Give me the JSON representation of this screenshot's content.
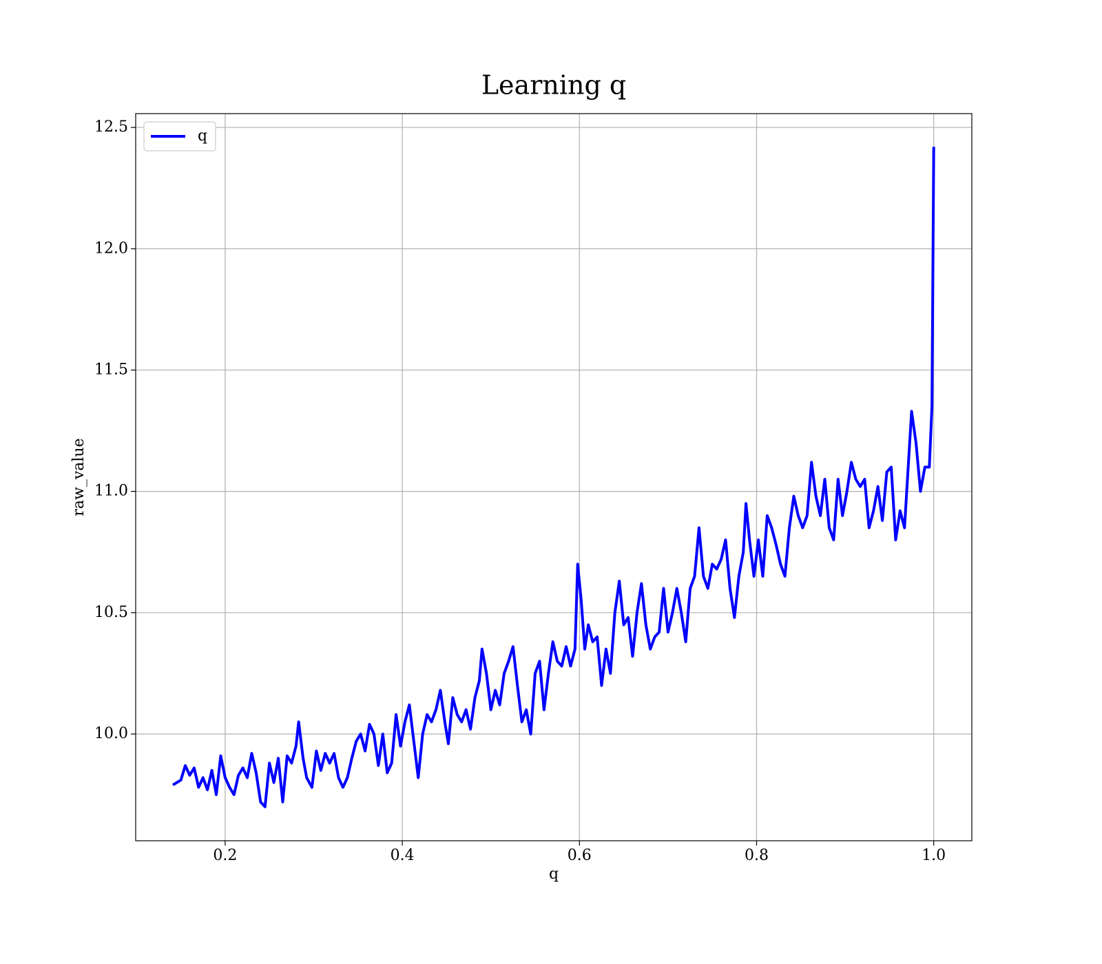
{
  "chart_data": {
    "type": "line",
    "title": "Learning q",
    "xlabel": "q",
    "ylabel": "raw_value",
    "x": [
      0.141,
      0.15,
      0.155,
      0.16,
      0.165,
      0.17,
      0.175,
      0.18,
      0.185,
      0.19,
      0.195,
      0.2,
      0.205,
      0.21,
      0.215,
      0.22,
      0.225,
      0.23,
      0.235,
      0.24,
      0.245,
      0.25,
      0.255,
      0.26,
      0.265,
      0.27,
      0.275,
      0.28,
      0.283,
      0.288,
      0.292,
      0.298,
      0.303,
      0.308,
      0.313,
      0.318,
      0.323,
      0.328,
      0.333,
      0.338,
      0.343,
      0.348,
      0.353,
      0.358,
      0.363,
      0.368,
      0.373,
      0.378,
      0.383,
      0.388,
      0.393,
      0.398,
      0.403,
      0.408,
      0.412,
      0.418,
      0.423,
      0.428,
      0.433,
      0.438,
      0.443,
      0.448,
      0.452,
      0.457,
      0.462,
      0.467,
      0.472,
      0.477,
      0.482,
      0.487,
      0.49,
      0.495,
      0.5,
      0.505,
      0.51,
      0.515,
      0.52,
      0.525,
      0.53,
      0.535,
      0.54,
      0.545,
      0.55,
      0.555,
      0.56,
      0.565,
      0.57,
      0.575,
      0.58,
      0.585,
      0.59,
      0.595,
      0.598,
      0.602,
      0.606,
      0.61,
      0.615,
      0.62,
      0.625,
      0.63,
      0.635,
      0.64,
      0.645,
      0.65,
      0.655,
      0.66,
      0.665,
      0.67,
      0.675,
      0.68,
      0.685,
      0.69,
      0.695,
      0.7,
      0.705,
      0.71,
      0.715,
      0.72,
      0.725,
      0.73,
      0.735,
      0.74,
      0.745,
      0.75,
      0.755,
      0.76,
      0.765,
      0.77,
      0.775,
      0.78,
      0.785,
      0.788,
      0.792,
      0.797,
      0.802,
      0.807,
      0.812,
      0.817,
      0.822,
      0.827,
      0.832,
      0.837,
      0.842,
      0.847,
      0.852,
      0.857,
      0.862,
      0.867,
      0.872,
      0.877,
      0.882,
      0.887,
      0.892,
      0.897,
      0.902,
      0.907,
      0.912,
      0.917,
      0.922,
      0.927,
      0.932,
      0.937,
      0.942,
      0.947,
      0.952,
      0.957,
      0.962,
      0.967,
      0.972,
      0.975,
      0.98,
      0.985,
      0.99,
      0.995,
      0.998,
      1.0
    ],
    "series": [
      {
        "name": "q",
        "color": "#0000ff",
        "values": [
          9.79,
          9.81,
          9.87,
          9.83,
          9.86,
          9.78,
          9.82,
          9.77,
          9.85,
          9.75,
          9.91,
          9.82,
          9.78,
          9.75,
          9.83,
          9.86,
          9.82,
          9.92,
          9.84,
          9.72,
          9.7,
          9.88,
          9.8,
          9.9,
          9.72,
          9.91,
          9.88,
          9.95,
          10.05,
          9.9,
          9.82,
          9.78,
          9.93,
          9.85,
          9.92,
          9.88,
          9.92,
          9.82,
          9.78,
          9.82,
          9.9,
          9.97,
          10.0,
          9.93,
          10.04,
          10.0,
          9.87,
          10.0,
          9.84,
          9.88,
          10.08,
          9.95,
          10.05,
          10.12,
          10.0,
          9.82,
          10.0,
          10.08,
          10.05,
          10.1,
          10.18,
          10.05,
          9.96,
          10.15,
          10.08,
          10.05,
          10.1,
          10.02,
          10.15,
          10.22,
          10.35,
          10.25,
          10.1,
          10.18,
          10.12,
          10.25,
          10.3,
          10.36,
          10.2,
          10.05,
          10.1,
          10.0,
          10.25,
          10.3,
          10.1,
          10.25,
          10.38,
          10.3,
          10.28,
          10.36,
          10.28,
          10.35,
          10.7,
          10.55,
          10.35,
          10.45,
          10.38,
          10.4,
          10.2,
          10.35,
          10.25,
          10.5,
          10.63,
          10.45,
          10.48,
          10.32,
          10.5,
          10.62,
          10.45,
          10.35,
          10.4,
          10.42,
          10.6,
          10.42,
          10.5,
          10.6,
          10.5,
          10.38,
          10.6,
          10.65,
          10.85,
          10.65,
          10.6,
          10.7,
          10.68,
          10.72,
          10.8,
          10.6,
          10.48,
          10.65,
          10.75,
          10.95,
          10.8,
          10.65,
          10.8,
          10.65,
          10.9,
          10.85,
          10.78,
          10.7,
          10.65,
          10.85,
          10.98,
          10.9,
          10.85,
          10.9,
          11.12,
          10.98,
          10.9,
          11.05,
          10.85,
          10.8,
          11.05,
          10.9,
          11.0,
          11.12,
          11.05,
          11.02,
          11.05,
          10.85,
          10.92,
          11.02,
          10.88,
          11.08,
          11.1,
          10.8,
          10.92,
          10.85,
          11.15,
          11.33,
          11.2,
          11.0,
          11.1,
          11.1,
          11.35,
          12.42
        ]
      }
    ],
    "xlim": [
      0.099,
      1.043
    ],
    "xticks": [
      0.2,
      0.4,
      0.6,
      0.8,
      {
        "value": 1,
        "label": "1.0"
      }
    ],
    "ylim": [
      9.56,
      12.557
    ],
    "yticks": [
      {
        "value": 10,
        "label": "10.0"
      },
      10.5,
      {
        "value": 11,
        "label": "11.0"
      },
      11.5,
      {
        "value": 12,
        "label": "12.0"
      },
      12.5
    ],
    "grid": true,
    "legend": "upper left"
  }
}
